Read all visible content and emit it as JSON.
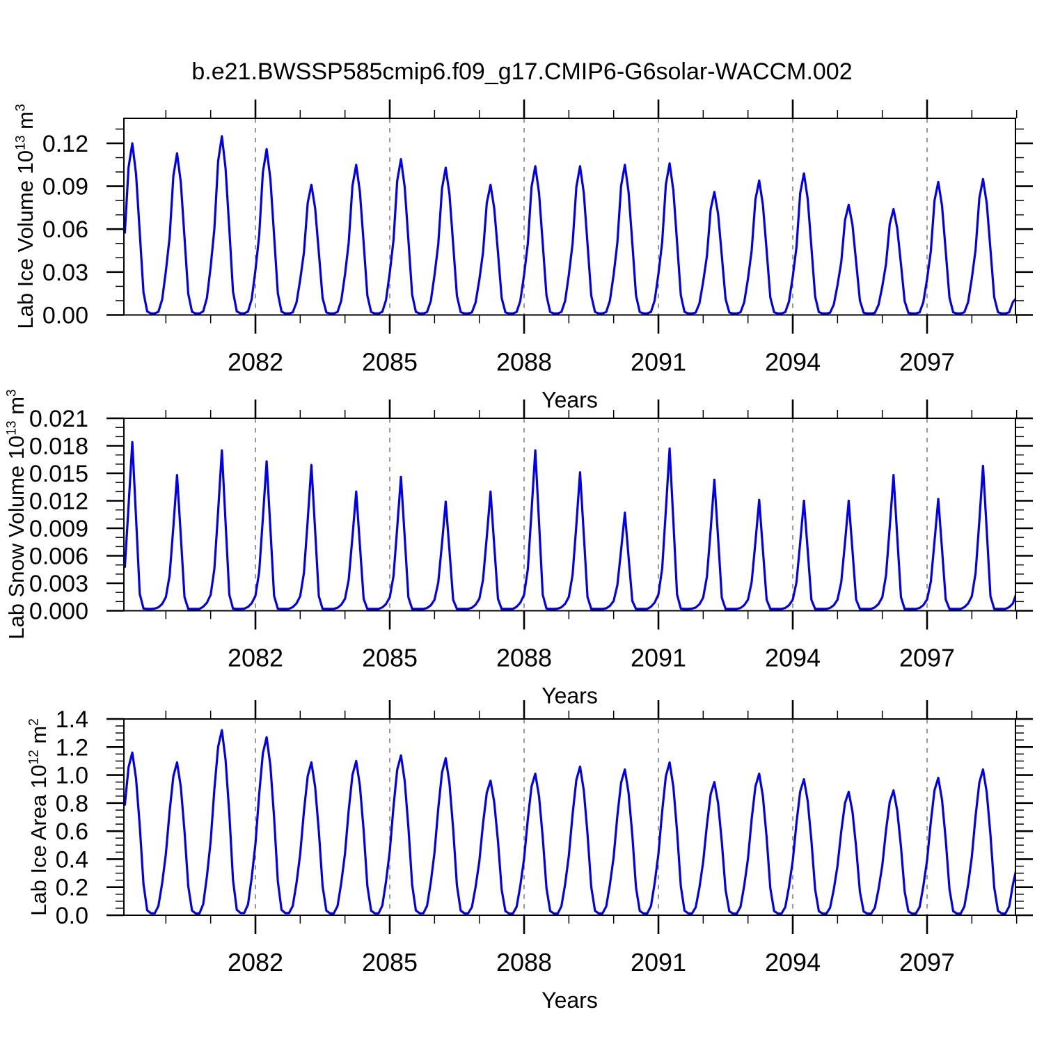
{
  "figure": {
    "title": "b.e21.BWSSP585cmip6.f09_g17.CMIP6-G6solar-WACCM.002",
    "background_color": "#ffffff",
    "line_color": "#0000ee",
    "frame_color": "#000000",
    "gridline_color": "#6e6e6e"
  },
  "chart_data": {
    "type": "line",
    "n_panels": 3,
    "x_axis": {
      "label": "Years",
      "xlim": [
        2079.062,
        2098.974
      ],
      "x_major_ticks": [
        2082,
        2085,
        2088,
        2091,
        2094,
        2097
      ],
      "x_tick_labels": [
        "2082",
        "2085",
        "2088",
        "2091",
        "2094",
        "2097"
      ],
      "x_minor_step_years": 1,
      "gridlines": "dashed vertical at major ticks",
      "sampling": "monthly points from Feb 2079 (2079.083) to Jan 2099 (2099.0)"
    },
    "panels": [
      {
        "id": "lab_ice_volume",
        "ylabel": {
          "base": "Lab Ice Volume 10",
          "exp": "13",
          "unit": " m",
          "unit_exp": "3"
        },
        "xlabel": "Years",
        "ylim": [
          0,
          0.1375
        ],
        "y_major_ticks": [
          0.0,
          0.03,
          0.06,
          0.09,
          0.12
        ],
        "y_tick_labels": [
          "0.00",
          "0.03",
          "0.06",
          "0.09",
          "0.12"
        ],
        "y_minor_step": 0.01,
        "y_decimals": 2,
        "series": {
          "name": "Lab Ice Volume",
          "years": [
            2079,
            2080,
            2081,
            2082,
            2083,
            2084,
            2085,
            2086,
            2087,
            2088,
            2089,
            2090,
            2091,
            2092,
            2093,
            2094,
            2095,
            2096,
            2097,
            2098
          ],
          "annual_spring_peaks": [
            0.12,
            0.113,
            0.125,
            0.116,
            0.091,
            0.105,
            0.109,
            0.103,
            0.091,
            0.104,
            0.104,
            0.105,
            0.106,
            0.086,
            0.094,
            0.099,
            0.077,
            0.074,
            0.093,
            0.095
          ],
          "monthly_profile_jan_to_dec": [
            0.27,
            0.48,
            0.86,
            1.0,
            0.82,
            0.48,
            0.13,
            0.02,
            0.009,
            0.009,
            0.02,
            0.095
          ],
          "summer_min_floor": 0.001,
          "end_value_jan_2099": 0.012
        }
      },
      {
        "id": "lab_snow_volume",
        "ylabel": {
          "base": "Lab Snow Volume 10",
          "exp": "13",
          "unit": " m",
          "unit_exp": "3"
        },
        "xlabel": "Years",
        "ylim": [
          0,
          0.021
        ],
        "y_major_ticks": [
          0.0,
          0.003,
          0.006,
          0.009,
          0.012,
          0.015,
          0.018,
          0.021
        ],
        "y_tick_labels": [
          "0.000",
          "0.003",
          "0.006",
          "0.009",
          "0.012",
          "0.015",
          "0.018",
          "0.021"
        ],
        "y_minor_step": 0.001,
        "y_decimals": 3,
        "series": {
          "name": "Lab Snow Volume",
          "years": [
            2079,
            2080,
            2081,
            2082,
            2083,
            2084,
            2085,
            2086,
            2087,
            2088,
            2089,
            2090,
            2091,
            2092,
            2093,
            2094,
            2095,
            2096,
            2097,
            2098
          ],
          "annual_spring_peaks": [
            0.0184,
            0.0148,
            0.0175,
            0.0163,
            0.0159,
            0.013,
            0.0146,
            0.0119,
            0.013,
            0.0175,
            0.0151,
            0.0107,
            0.0177,
            0.0143,
            0.0121,
            0.012,
            0.012,
            0.0148,
            0.0122,
            0.0158
          ],
          "monthly_profile_jan_to_dec": [
            0.1,
            0.26,
            0.62,
            1.0,
            0.55,
            0.1,
            0.013,
            0.011,
            0.011,
            0.013,
            0.025,
            0.05
          ],
          "summer_min_floor": 0.0002,
          "end_value_jan_2099": 0.002
        }
      },
      {
        "id": "lab_ice_area",
        "ylabel": {
          "base": "Lab Ice Area 10",
          "exp": "12",
          "unit": " m",
          "unit_exp": "2"
        },
        "xlabel": "Years",
        "ylim": [
          0,
          1.4
        ],
        "y_major_ticks": [
          0.0,
          0.2,
          0.4,
          0.6,
          0.8,
          1.0,
          1.2,
          1.4
        ],
        "y_tick_labels": [
          "0.0",
          "0.2",
          "0.4",
          "0.6",
          "0.8",
          "1.0",
          "1.2",
          "1.4"
        ],
        "y_minor_step": 0.05,
        "y_decimals": 1,
        "series": {
          "name": "Lab Ice Area",
          "years": [
            2079,
            2080,
            2081,
            2082,
            2083,
            2084,
            2085,
            2086,
            2087,
            2088,
            2089,
            2090,
            2091,
            2092,
            2093,
            2094,
            2095,
            2096,
            2097,
            2098
          ],
          "annual_spring_peaks": [
            1.16,
            1.09,
            1.32,
            1.27,
            1.09,
            1.1,
            1.14,
            1.12,
            0.96,
            1.01,
            1.06,
            1.04,
            1.09,
            0.95,
            1.01,
            0.97,
            0.88,
            0.89,
            0.98,
            1.04
          ],
          "monthly_profile_jan_to_dec": [
            0.4,
            0.68,
            0.91,
            1.0,
            0.84,
            0.55,
            0.19,
            0.03,
            0.012,
            0.012,
            0.06,
            0.21
          ],
          "summer_min_floor": 0.012,
          "end_value_jan_2099": 0.34
        }
      }
    ]
  }
}
